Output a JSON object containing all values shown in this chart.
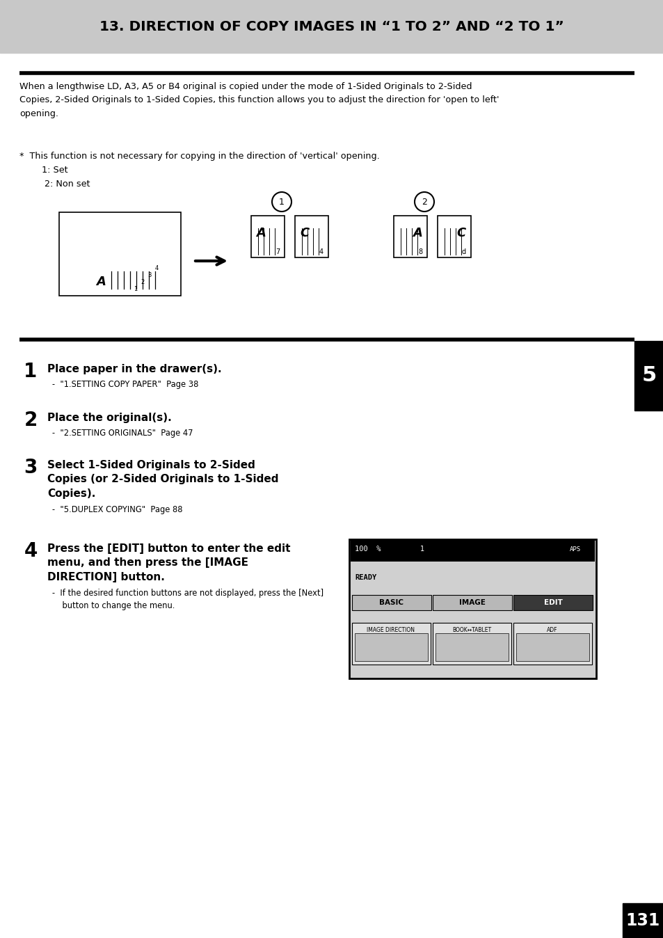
{
  "title": "13. DIRECTION OF COPY IMAGES IN “1 TO 2” AND “2 TO 1”",
  "title_bg": "#c8c8c8",
  "title_color": "#000000",
  "page_bg": "#ffffff",
  "body_text": "When a lengthwise LD, A3, A5 or B4 original is copied under the mode of 1-Sided Originals to 2-Sided\nCopies, 2-Sided Originals to 1-Sided Copies, this function allows you to adjust the direction for 'open to left'\nopening.",
  "note_text": "*  This function is not necessary for copying in the direction of 'vertical' opening.\n        1: Set\n         2: Non set",
  "step1_num": "1",
  "step1_bold": "Place paper in the drawer(s).",
  "step1_sub": "-  \"1.SETTING COPY PAPER\"  Page 38",
  "step2_num": "2",
  "step2_bold": "Place the original(s).",
  "step2_sub": "-  \"2.SETTING ORIGINALS\"  Page 47",
  "step3_num": "3",
  "step3_bold": "Select 1-Sided Originals to 2-Sided\nCopies (or 2-Sided Originals to 1-Sided\nCopies).",
  "step3_sub": "-  \"5.DUPLEX COPYING\"  Page 88",
  "step4_num": "4",
  "step4_bold": "Press the [EDIT] button to enter the edit\nmenu, and then press the [IMAGE\nDIRECTION] button.",
  "step4_sub": "-  If the desired function buttons are not displayed, press the [Next]\n    button to change the menu.",
  "sidebar_num": "5",
  "page_num": "131",
  "screen_tabs": [
    "BASIC",
    "IMAGE",
    "EDIT"
  ],
  "screen_buttons": [
    "IMAGE DIRECTION",
    "BOOK↔TABLET",
    "ADF"
  ]
}
